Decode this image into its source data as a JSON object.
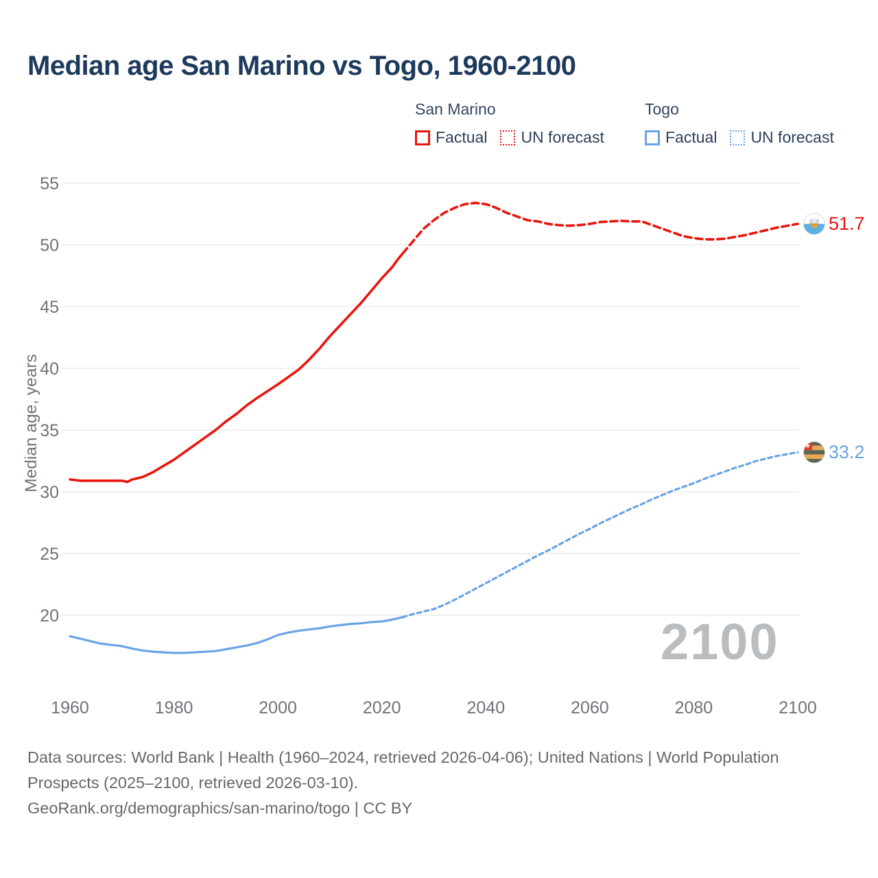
{
  "title": "Median age San Marino vs Togo, 1960-2100",
  "legend": {
    "groups": [
      {
        "name": "San Marino",
        "color": "#e9150d",
        "items": [
          {
            "label": "Factual",
            "style": "solid"
          },
          {
            "label": "UN forecast",
            "style": "dotted"
          }
        ]
      },
      {
        "name": "Togo",
        "color": "#68a4e4",
        "items": [
          {
            "label": "Factual",
            "style": "solid"
          },
          {
            "label": "UN forecast",
            "style": "dotted"
          }
        ]
      }
    ]
  },
  "y_axis": {
    "title": "Median age, years",
    "ticks": [
      20,
      25,
      30,
      35,
      40,
      45,
      50,
      55
    ]
  },
  "x_axis": {
    "ticks": [
      1960,
      1980,
      2000,
      2020,
      2040,
      2060,
      2080,
      2100
    ]
  },
  "watermark": "2100",
  "end_labels": [
    {
      "series": "San Marino",
      "value": "51.7",
      "color": "#e9150d",
      "flag": "san-marino-flag"
    },
    {
      "series": "Togo",
      "value": "33.2",
      "color": "#68a4e4",
      "flag": "togo-flag"
    }
  ],
  "footer": {
    "sources": "Data sources: World Bank | Health (1960–2024, retrieved 2026-04-06); United Nations | World Population Prospects (2025–2100, retrieved 2026-03-10).",
    "credit": "GeoRank.org/demographics/san-marino/togo | CC BY"
  },
  "colors": {
    "san_marino": "#e9150d",
    "togo": "#68a4e4",
    "title_text": "#1d3a5c",
    "axis_text": "#6e7378",
    "gridline": "#e8e8e8",
    "watermark": "#b9bdc0",
    "footer_text": "#63686c"
  },
  "chart_data": {
    "type": "line",
    "title": "Median age San Marino vs Togo, 1960-2100",
    "xlabel": "",
    "ylabel": "Median age, years",
    "xlim": [
      1958,
      2113
    ],
    "ylim": [
      16,
      56
    ],
    "grid": true,
    "legend_position": "top-right",
    "series": [
      {
        "id": "san-marino-factual",
        "name": "San Marino",
        "segment": "Factual",
        "style": "solid",
        "color": "#e9150d",
        "width": 3.6,
        "points": [
          [
            1960,
            31.0
          ],
          [
            1962,
            30.9
          ],
          [
            1964,
            30.9
          ],
          [
            1966,
            30.9
          ],
          [
            1968,
            30.9
          ],
          [
            1970,
            30.9
          ],
          [
            1971,
            30.8
          ],
          [
            1972,
            31.0
          ],
          [
            1974,
            31.2
          ],
          [
            1976,
            31.6
          ],
          [
            1978,
            32.1
          ],
          [
            1980,
            32.6
          ],
          [
            1982,
            33.2
          ],
          [
            1984,
            33.8
          ],
          [
            1986,
            34.4
          ],
          [
            1988,
            35.0
          ],
          [
            1990,
            35.7
          ],
          [
            1992,
            36.3
          ],
          [
            1994,
            37.0
          ],
          [
            1996,
            37.6
          ],
          [
            1998,
            38.15
          ],
          [
            2000,
            38.7
          ],
          [
            2002,
            39.3
          ],
          [
            2004,
            39.9
          ],
          [
            2006,
            40.7
          ],
          [
            2008,
            41.6
          ],
          [
            2010,
            42.6
          ],
          [
            2012,
            43.5
          ],
          [
            2014,
            44.4
          ],
          [
            2016,
            45.3
          ],
          [
            2018,
            46.3
          ],
          [
            2020,
            47.3
          ],
          [
            2022,
            48.2
          ],
          [
            2023,
            48.8
          ],
          [
            2024,
            49.3
          ]
        ]
      },
      {
        "id": "san-marino-forecast",
        "name": "San Marino",
        "segment": "UN forecast",
        "style": "dashed",
        "dash": "10 6",
        "color": "#e9150d",
        "width": 3.6,
        "points": [
          [
            2024,
            49.3
          ],
          [
            2026,
            50.3
          ],
          [
            2028,
            51.3
          ],
          [
            2030,
            52.0
          ],
          [
            2032,
            52.6
          ],
          [
            2034,
            53.0
          ],
          [
            2036,
            53.3
          ],
          [
            2038,
            53.4
          ],
          [
            2040,
            53.3
          ],
          [
            2042,
            53.0
          ],
          [
            2044,
            52.6
          ],
          [
            2046,
            52.3
          ],
          [
            2048,
            52.0
          ],
          [
            2050,
            51.9
          ],
          [
            2052,
            51.7
          ],
          [
            2054,
            51.6
          ],
          [
            2056,
            51.55
          ],
          [
            2058,
            51.6
          ],
          [
            2060,
            51.7
          ],
          [
            2062,
            51.85
          ],
          [
            2064,
            51.9
          ],
          [
            2066,
            51.95
          ],
          [
            2068,
            51.9
          ],
          [
            2070,
            51.9
          ],
          [
            2072,
            51.6
          ],
          [
            2074,
            51.3
          ],
          [
            2076,
            51.0
          ],
          [
            2078,
            50.7
          ],
          [
            2080,
            50.55
          ],
          [
            2082,
            50.45
          ],
          [
            2084,
            50.45
          ],
          [
            2086,
            50.5
          ],
          [
            2088,
            50.65
          ],
          [
            2090,
            50.8
          ],
          [
            2092,
            51.0
          ],
          [
            2094,
            51.2
          ],
          [
            2096,
            51.4
          ],
          [
            2098,
            51.55
          ],
          [
            2100,
            51.7
          ]
        ]
      },
      {
        "id": "togo-factual",
        "name": "Togo",
        "segment": "Factual",
        "style": "solid",
        "color": "#68a4e4",
        "width": 3.2,
        "points": [
          [
            1960,
            18.3
          ],
          [
            1962,
            18.1
          ],
          [
            1964,
            17.9
          ],
          [
            1966,
            17.7
          ],
          [
            1968,
            17.6
          ],
          [
            1970,
            17.5
          ],
          [
            1972,
            17.3
          ],
          [
            1974,
            17.15
          ],
          [
            1976,
            17.05
          ],
          [
            1978,
            17.0
          ],
          [
            1980,
            16.95
          ],
          [
            1982,
            16.95
          ],
          [
            1984,
            17.0
          ],
          [
            1986,
            17.05
          ],
          [
            1988,
            17.1
          ],
          [
            1990,
            17.25
          ],
          [
            1992,
            17.4
          ],
          [
            1994,
            17.55
          ],
          [
            1996,
            17.75
          ],
          [
            1998,
            18.05
          ],
          [
            2000,
            18.4
          ],
          [
            2002,
            18.6
          ],
          [
            2004,
            18.75
          ],
          [
            2006,
            18.85
          ],
          [
            2008,
            18.95
          ],
          [
            2010,
            19.1
          ],
          [
            2012,
            19.2
          ],
          [
            2014,
            19.3
          ],
          [
            2016,
            19.35
          ],
          [
            2018,
            19.45
          ],
          [
            2020,
            19.5
          ],
          [
            2022,
            19.65
          ],
          [
            2024,
            19.85
          ]
        ]
      },
      {
        "id": "togo-forecast",
        "name": "Togo",
        "segment": "UN forecast",
        "style": "dashed",
        "dash": "6 5",
        "color": "#68a4e4",
        "width": 3.2,
        "points": [
          [
            2024,
            19.85
          ],
          [
            2026,
            20.1
          ],
          [
            2028,
            20.3
          ],
          [
            2030,
            20.5
          ],
          [
            2032,
            20.85
          ],
          [
            2034,
            21.25
          ],
          [
            2036,
            21.7
          ],
          [
            2038,
            22.15
          ],
          [
            2040,
            22.6
          ],
          [
            2042,
            23.05
          ],
          [
            2044,
            23.5
          ],
          [
            2046,
            23.95
          ],
          [
            2048,
            24.4
          ],
          [
            2050,
            24.85
          ],
          [
            2052,
            25.25
          ],
          [
            2054,
            25.7
          ],
          [
            2056,
            26.15
          ],
          [
            2058,
            26.6
          ],
          [
            2060,
            27.0
          ],
          [
            2062,
            27.45
          ],
          [
            2064,
            27.85
          ],
          [
            2066,
            28.25
          ],
          [
            2068,
            28.65
          ],
          [
            2070,
            29.0
          ],
          [
            2072,
            29.4
          ],
          [
            2074,
            29.75
          ],
          [
            2076,
            30.1
          ],
          [
            2078,
            30.4
          ],
          [
            2080,
            30.7
          ],
          [
            2082,
            31.05
          ],
          [
            2084,
            31.35
          ],
          [
            2086,
            31.65
          ],
          [
            2088,
            31.95
          ],
          [
            2090,
            32.2
          ],
          [
            2092,
            32.5
          ],
          [
            2094,
            32.7
          ],
          [
            2096,
            32.9
          ],
          [
            2098,
            33.05
          ],
          [
            2100,
            33.2
          ]
        ]
      }
    ]
  }
}
